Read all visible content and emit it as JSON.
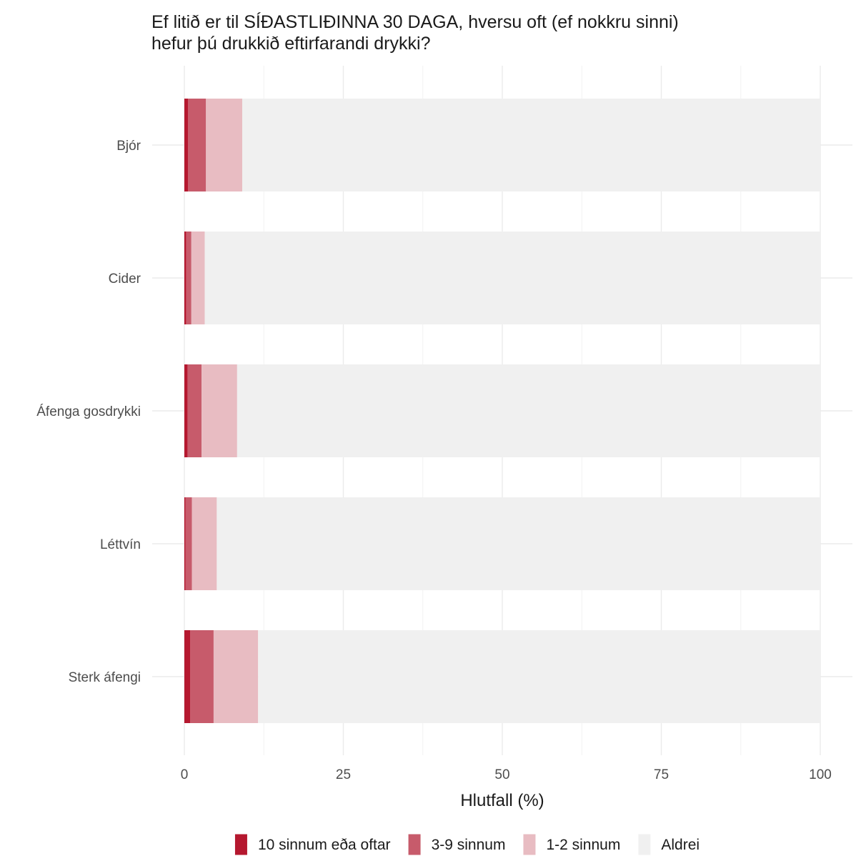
{
  "chart_data": {
    "type": "bar",
    "orientation": "horizontal",
    "stacked": true,
    "title_lines": [
      "Ef litið er til SÍÐASTLIÐINNA 30 DAGA, hversu oft (ef nokkru sinni)",
      "hefur þú drukkið eftirfarandi drykki?"
    ],
    "xlabel": "Hlutfall (%)",
    "ylabel": "",
    "xlim": [
      0,
      100
    ],
    "xticks": [
      "0",
      "25",
      "50",
      "75",
      "100"
    ],
    "grid": true,
    "legend_position": "bottom",
    "categories": [
      "Bjór",
      "Cider",
      "Áfenga gosdrykki",
      "Léttvín",
      "Sterk áfengi"
    ],
    "series": [
      {
        "name": "10 sinnum eða oftar",
        "color": "#b5182f",
        "values": [
          0.6,
          0.3,
          0.5,
          0.2,
          0.9
        ]
      },
      {
        "name": "3-9 sinnum",
        "color": "#c75b6b",
        "values": [
          2.8,
          0.8,
          2.2,
          1.0,
          3.7
        ]
      },
      {
        "name": "1-2 sinnum",
        "color": "#e8bcc2",
        "values": [
          5.7,
          2.1,
          5.6,
          3.9,
          7.0
        ]
      },
      {
        "name": "Aldrei",
        "color": "#f0f0f0",
        "values": [
          90.9,
          96.8,
          91.7,
          94.9,
          88.4
        ]
      }
    ]
  }
}
